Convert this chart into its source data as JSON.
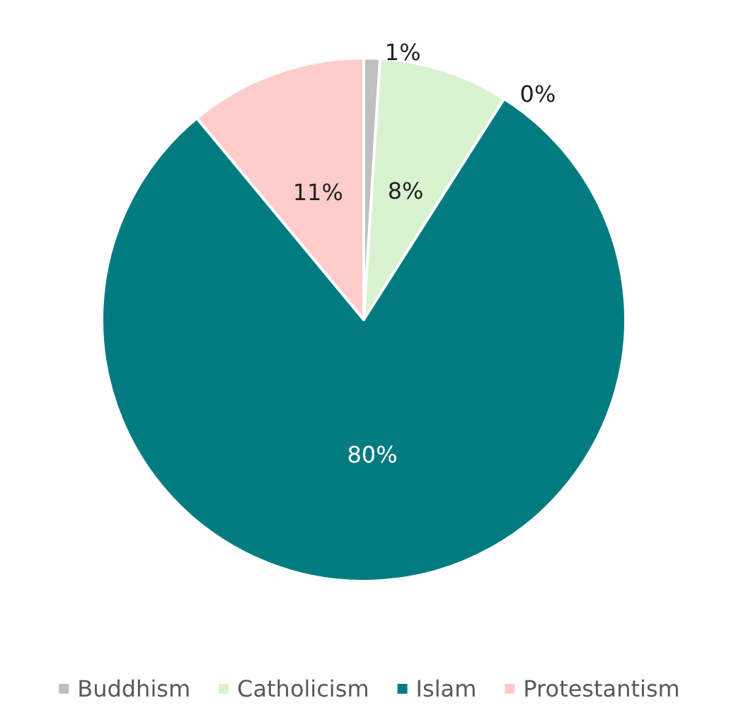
{
  "chart_data": {
    "type": "pie",
    "categories": [
      "Buddhism",
      "Catholicism",
      null,
      "Islam",
      "Protestantism"
    ],
    "values": [
      1,
      8,
      0,
      80,
      11
    ],
    "value_labels": [
      "1%",
      "8%",
      "0%",
      "80%",
      "11%"
    ],
    "colors": [
      "#bfbfbf",
      "#d9f2d0",
      "#a6a6a6",
      "#007c80",
      "#ffcccc"
    ],
    "legend": "bottom"
  }
}
